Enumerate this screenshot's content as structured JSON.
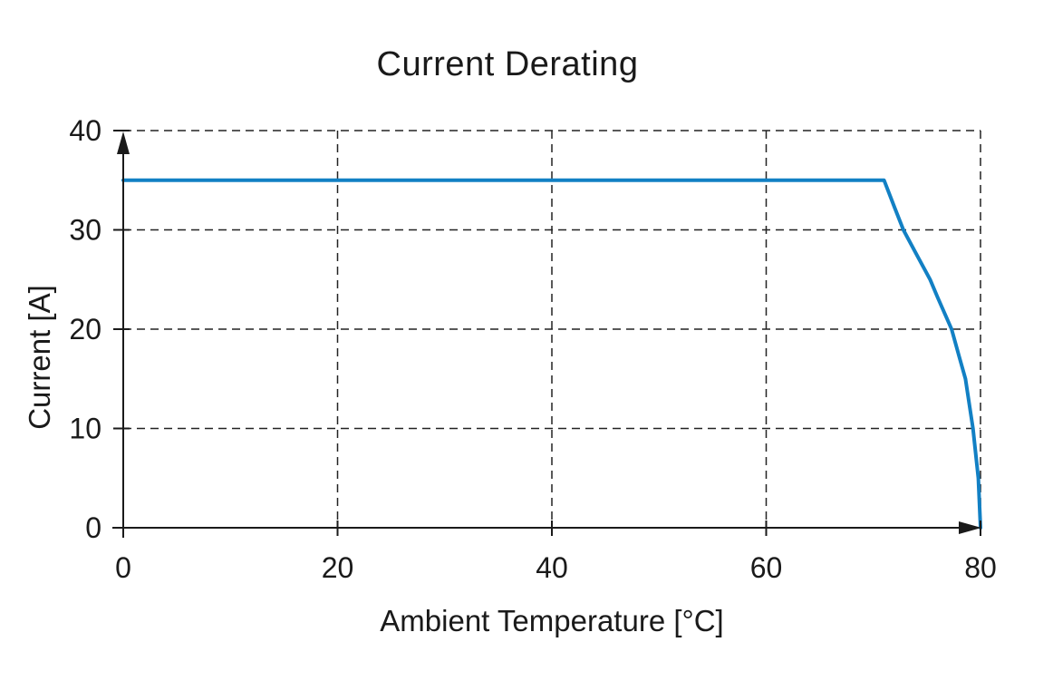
{
  "chart_data": {
    "type": "line",
    "title": "Current Derating",
    "xlabel": "Ambient Temperature [°C]",
    "ylabel": "Current [A]",
    "xlim": [
      0,
      80
    ],
    "ylim": [
      0,
      40
    ],
    "x_ticks": [
      0,
      20,
      40,
      60,
      80
    ],
    "y_ticks": [
      0,
      10,
      20,
      30,
      40
    ],
    "grid": "dashed",
    "legend": "none",
    "colors": {
      "line": "#1280c4",
      "axis": "#1a1a1a",
      "gridline": "#222222",
      "background": "#ffffff"
    },
    "series": [
      {
        "points": [
          [
            0,
            35
          ],
          [
            71,
            35
          ],
          [
            72,
            32.2
          ],
          [
            72.8,
            30
          ],
          [
            74,
            27.6
          ],
          [
            75.3,
            25
          ],
          [
            76,
            23.2
          ],
          [
            77.3,
            20
          ],
          [
            78,
            17.3
          ],
          [
            78.6,
            15
          ],
          [
            79,
            12.1
          ],
          [
            79.3,
            10
          ],
          [
            79.8,
            5
          ],
          [
            80,
            0
          ]
        ]
      }
    ]
  }
}
